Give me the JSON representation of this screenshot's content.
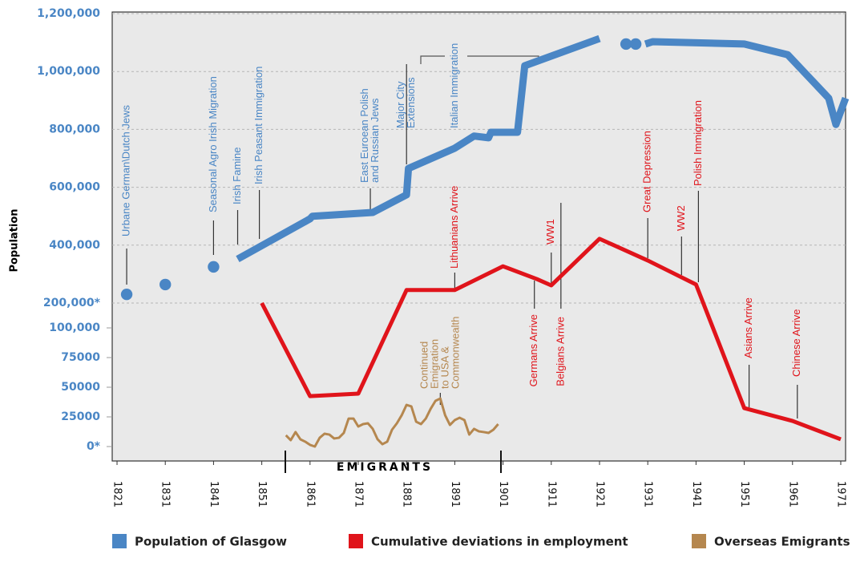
{
  "chart_data": {
    "type": "line",
    "y_label": "Population",
    "x_title": "EMIGRANTS",
    "xlim": [
      1820,
      1972
    ],
    "xticks": [
      1821,
      1831,
      1841,
      1851,
      1861,
      1871,
      1881,
      1891,
      1901,
      1911,
      1921,
      1931,
      1941,
      1951,
      1961,
      1971
    ],
    "ylim": [
      200000,
      1200000
    ],
    "yticks": [
      {
        "value": 200000,
        "label": "200,000*"
      },
      {
        "value": 400000,
        "label": "400,000"
      },
      {
        "value": 600000,
        "label": "600,000"
      },
      {
        "value": 800000,
        "label": "800,000"
      },
      {
        "value": 1000000,
        "label": "1,000,000"
      },
      {
        "value": 1200000,
        "label": "1,200,000"
      }
    ],
    "y2lim": [
      0,
      100000
    ],
    "y2ticks": [
      {
        "value": 0,
        "label": "0*"
      },
      25000,
      50000,
      75000,
      {
        "value": 100000,
        "label": "100,000"
      }
    ],
    "grid": true,
    "series": [
      {
        "name": "Population of Glasgow",
        "color": "#4a86c5",
        "width": 9,
        "x": [
          1823,
          1827,
          1831,
          1836,
          1841,
          1843,
          1846,
          1861,
          1861.5,
          1874,
          1881,
          1881.4,
          1891,
          1895,
          1898,
          1898.5,
          1904,
          1905.5,
          1921,
          1924,
          1926.5,
          1927,
          1928.5,
          1929,
          1930.5,
          1932,
          1951,
          1960,
          1968.5,
          1970,
          1972
        ],
        "values": [
          230000,
          null,
          264000,
          null,
          325000,
          null,
          352000,
          491000,
          500000,
          513000,
          574000,
          665000,
          735000,
          777000,
          771000,
          790000,
          790000,
          1020000,
          1114000,
          null,
          1095000,
          null,
          1095000,
          null,
          1095000,
          1103000,
          1095000,
          1058000,
          908000,
          817000,
          908000
        ]
      },
      {
        "name": "Cumulative deviations in employment",
        "color": "#e0141b",
        "width": 5,
        "x": [
          1851,
          1861,
          1871,
          1881,
          1891,
          1901,
          1908,
          1911,
          1921,
          1931,
          1941,
          1951,
          1961,
          1971
        ],
        "values": [
          200000,
          42500,
          44600,
          245000,
          245000,
          327000,
          283000,
          261000,
          422000,
          347000,
          264000,
          32400,
          21600,
          6100
        ]
      },
      {
        "name": "Overseas Emigrants",
        "color": "#b5874f",
        "width": 3,
        "x": [
          1856,
          1857,
          1858,
          1859,
          1860,
          1861,
          1862,
          1863,
          1864,
          1865,
          1866,
          1867,
          1868,
          1869,
          1870,
          1871,
          1872,
          1873,
          1874,
          1875,
          1876,
          1877,
          1878,
          1879,
          1880,
          1881,
          1882,
          1883,
          1884,
          1885,
          1886,
          1887,
          1888,
          1889,
          1890,
          1891,
          1892,
          1893,
          1894,
          1895,
          1896,
          1897,
          1898,
          1899,
          1900
        ],
        "values": [
          9500,
          5400,
          12200,
          6100,
          4100,
          1400,
          0,
          7400,
          10800,
          10100,
          6800,
          7400,
          11500,
          23600,
          23600,
          16900,
          18900,
          19600,
          14900,
          6100,
          2000,
          4100,
          14200,
          19600,
          26400,
          35100,
          33800,
          20900,
          18900,
          23600,
          31800,
          38500,
          40500,
          26400,
          18200,
          22300,
          24300,
          22300,
          10100,
          14900,
          12800,
          12200,
          11500,
          14200,
          18900
        ]
      }
    ],
    "annotations": [
      {
        "lines": [
          "Urbane German\\Dutch Jews"
        ],
        "x": 1823,
        "color": "#4a86c5"
      },
      {
        "lines": [
          "Seasonal Agro Irish  Migration"
        ],
        "x": 1841,
        "color": "#4a86c5"
      },
      {
        "lines": [
          "Irish Famine"
        ],
        "x": 1846,
        "color": "#4a86c5"
      },
      {
        "lines": [
          "Irish  Peasant Immigration"
        ],
        "x": 1850.5,
        "color": "#4a86c5"
      },
      {
        "lines": [
          "East Euroean Polish",
          "and Russian Jews"
        ],
        "x": 1873.5,
        "color": "#4a86c5"
      },
      {
        "lines": [
          "Major City",
          "Extensions"
        ],
        "x": 1881,
        "color": "#4a86c5"
      },
      {
        "lines": [
          "Italian Immigration"
        ],
        "x": 1891,
        "color": "#4a86c5"
      },
      {
        "lines": [
          "Lithuanians Arrive"
        ],
        "x": 1891,
        "color": "#e0141b"
      },
      {
        "lines": [
          "Germans Arrive"
        ],
        "x": 1907.5,
        "color": "#e0141b"
      },
      {
        "lines": [
          "WW1"
        ],
        "x": 1911,
        "color": "#e0141b"
      },
      {
        "lines": [
          "Belgians Arrive"
        ],
        "x": 1913,
        "color": "#e0141b"
      },
      {
        "lines": [
          "Great Depression"
        ],
        "x": 1931,
        "color": "#e0141b"
      },
      {
        "lines": [
          "WW2"
        ],
        "x": 1938,
        "color": "#e0141b"
      },
      {
        "lines": [
          "Polish Immigration"
        ],
        "x": 1941.5,
        "color": "#e0141b"
      },
      {
        "lines": [
          "Asians Arrive"
        ],
        "x": 1952,
        "color": "#e0141b"
      },
      {
        "lines": [
          "Chinese Arrive"
        ],
        "x": 1962,
        "color": "#e0141b"
      },
      {
        "lines": [
          "Continued",
          "Emigration",
          "to USA &",
          "Commonwealth"
        ],
        "x": 1888,
        "color": "#b5874f"
      }
    ]
  }
}
